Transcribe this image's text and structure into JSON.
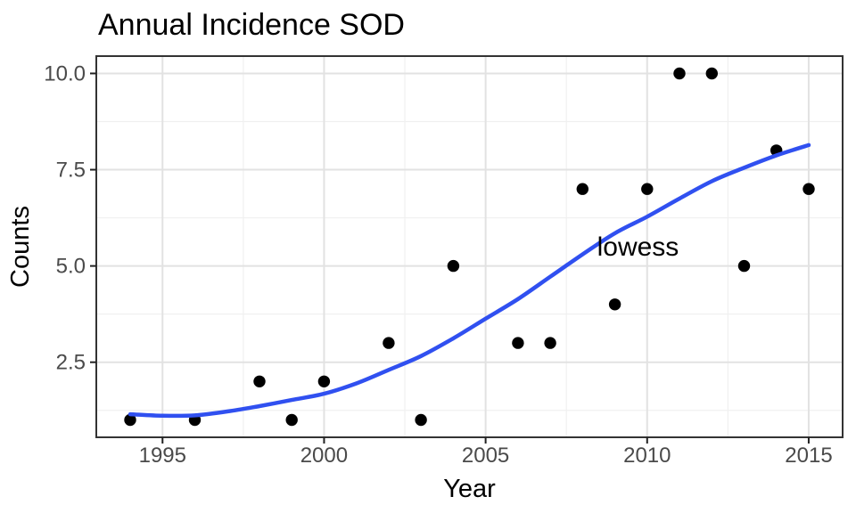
{
  "window": {
    "title": "Annual Incidence SOD"
  },
  "style": {
    "accent_blue": "#3050F0",
    "point_color": "#000000",
    "grid_major": "#E2E2E2",
    "grid_minor": "#F0F0F0",
    "panel_border": "#333333",
    "tick_color": "#222222",
    "tick_label_color": "#4A4A4A",
    "text_color": "#000000"
  },
  "chart_data": {
    "type": "scatter",
    "title": "Annual Incidence SOD",
    "xlabel": "Year",
    "ylabel": "Counts",
    "legend": "none",
    "grid": {
      "major": true,
      "minor": true
    },
    "xlim": [
      1992.95,
      2016.05
    ],
    "ylim": [
      0.55,
      10.45
    ],
    "x_ticks": {
      "values": [
        1995,
        2000,
        2005,
        2010,
        2015
      ],
      "labels": [
        "1995",
        "2000",
        "2005",
        "2010",
        "2015"
      ]
    },
    "y_ticks": {
      "values": [
        2.5,
        5,
        7.5,
        10
      ],
      "labels": [
        "2.5",
        "5.0",
        "7.5",
        "10.0"
      ]
    },
    "annotation": {
      "text": "lowess",
      "x": 2008.45,
      "y": 5.27
    },
    "series": [
      {
        "name": "observed-counts",
        "type": "points",
        "color": "#000000",
        "marker_radius": 6.7,
        "x": [
          1994,
          1996,
          1998,
          1999,
          2000,
          2002,
          2003,
          2004,
          2006,
          2007,
          2008,
          2009,
          2010,
          2011,
          2012,
          2013,
          2014,
          2015
        ],
        "y": [
          1,
          1,
          2,
          1,
          2,
          3,
          1,
          5,
          3,
          3,
          7,
          4,
          7,
          10,
          10,
          5,
          8,
          7
        ]
      },
      {
        "name": "lowess",
        "type": "line",
        "color": "#3050F0",
        "line_width": 4.5,
        "x": [
          1994,
          1995,
          1996,
          1997,
          1998,
          1999,
          2000,
          2001,
          2002,
          2003,
          2004,
          2005,
          2006,
          2007,
          2008,
          2009,
          2010,
          2011,
          2012,
          2013,
          2014,
          2015
        ],
        "y": [
          1.15,
          1.11,
          1.12,
          1.22,
          1.36,
          1.52,
          1.68,
          1.95,
          2.3,
          2.66,
          3.12,
          3.63,
          4.14,
          4.72,
          5.3,
          5.85,
          6.28,
          6.75,
          7.2,
          7.55,
          7.87,
          8.14
        ]
      }
    ]
  }
}
